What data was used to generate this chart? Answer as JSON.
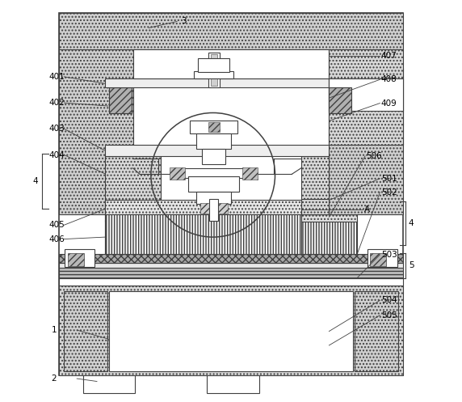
{
  "fig_width": 5.72,
  "fig_height": 4.97,
  "dpi": 100,
  "bg_color": "#ffffff",
  "line_color": "#404040"
}
